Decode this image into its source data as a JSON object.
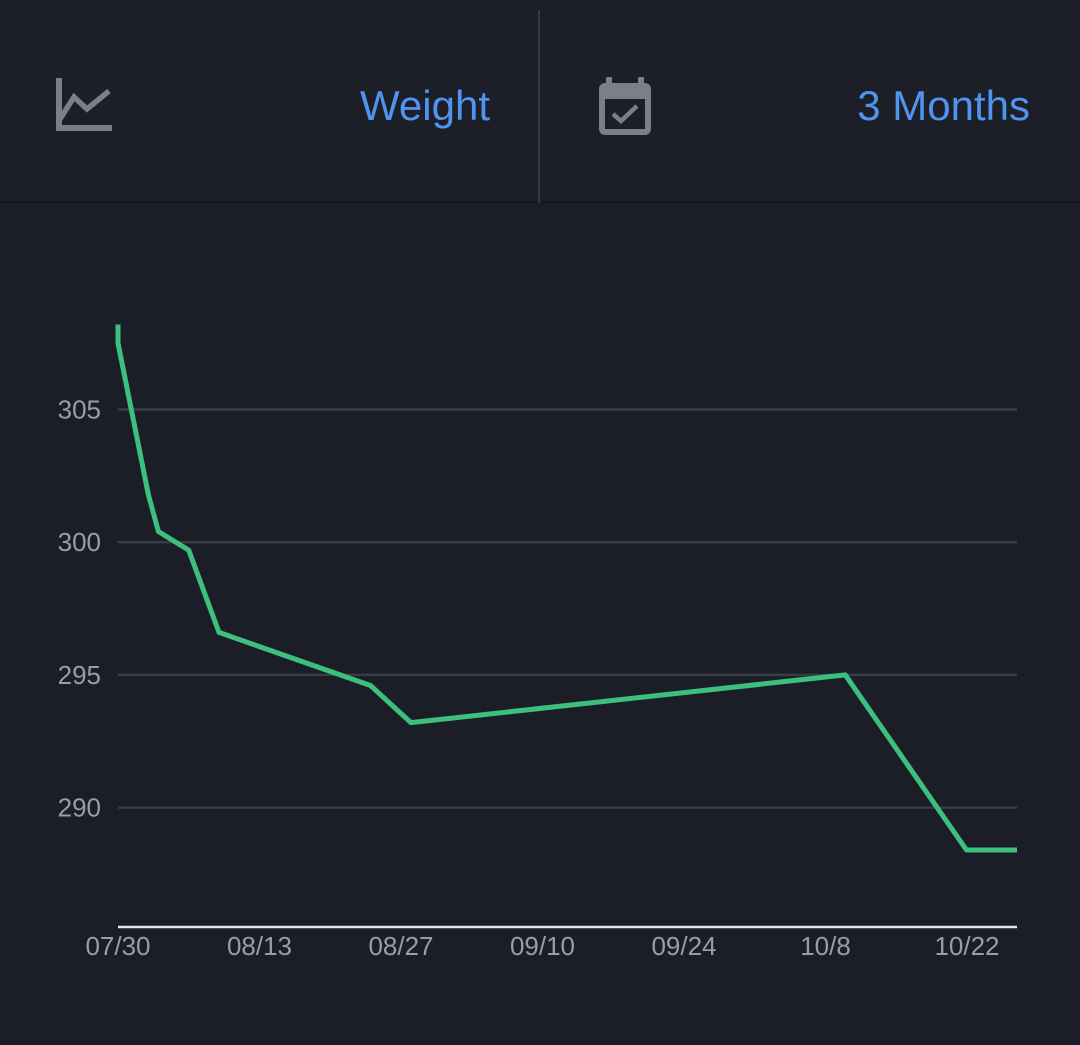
{
  "header": {
    "metric_icon": "line-chart-icon",
    "metric_label": "Weight",
    "range_icon": "calendar-check-icon",
    "range_label": "3 Months"
  },
  "colors": {
    "background": "#1c1e27",
    "accent": "#4f95ef",
    "line": "#3dbf7e",
    "grid": "#3a3c45",
    "axis": "#e6e6e6",
    "icon": "#7d7f86",
    "tick": "#9b9da5"
  },
  "chart_data": {
    "type": "line",
    "title": "",
    "xlabel": "",
    "ylabel": "",
    "x_ticks": [
      "07/30",
      "08/13",
      "08/27",
      "09/10",
      "09/24",
      "10/8",
      "10/22"
    ],
    "y_ticks": [
      290,
      295,
      300,
      305
    ],
    "xlim": [
      "2023-07-30",
      "2023-10-27"
    ],
    "ylim": [
      285.5,
      309.5
    ],
    "grid": true,
    "series": [
      {
        "points": [
          {
            "date": "2023-07-30",
            "value": 308.2
          },
          {
            "date": "2023-07-30",
            "value": 307.5
          },
          {
            "date": "2023-08-02",
            "value": 301.8
          },
          {
            "date": "2023-08-03",
            "value": 300.4
          },
          {
            "date": "2023-08-06",
            "value": 299.7
          },
          {
            "date": "2023-08-09",
            "value": 296.6
          },
          {
            "date": "2023-08-24",
            "value": 294.6
          },
          {
            "date": "2023-08-28",
            "value": 293.2
          },
          {
            "date": "2023-10-10",
            "value": 295.0
          },
          {
            "date": "2023-10-22",
            "value": 288.4
          },
          {
            "date": "2023-10-27",
            "value": 288.4
          }
        ]
      }
    ]
  }
}
